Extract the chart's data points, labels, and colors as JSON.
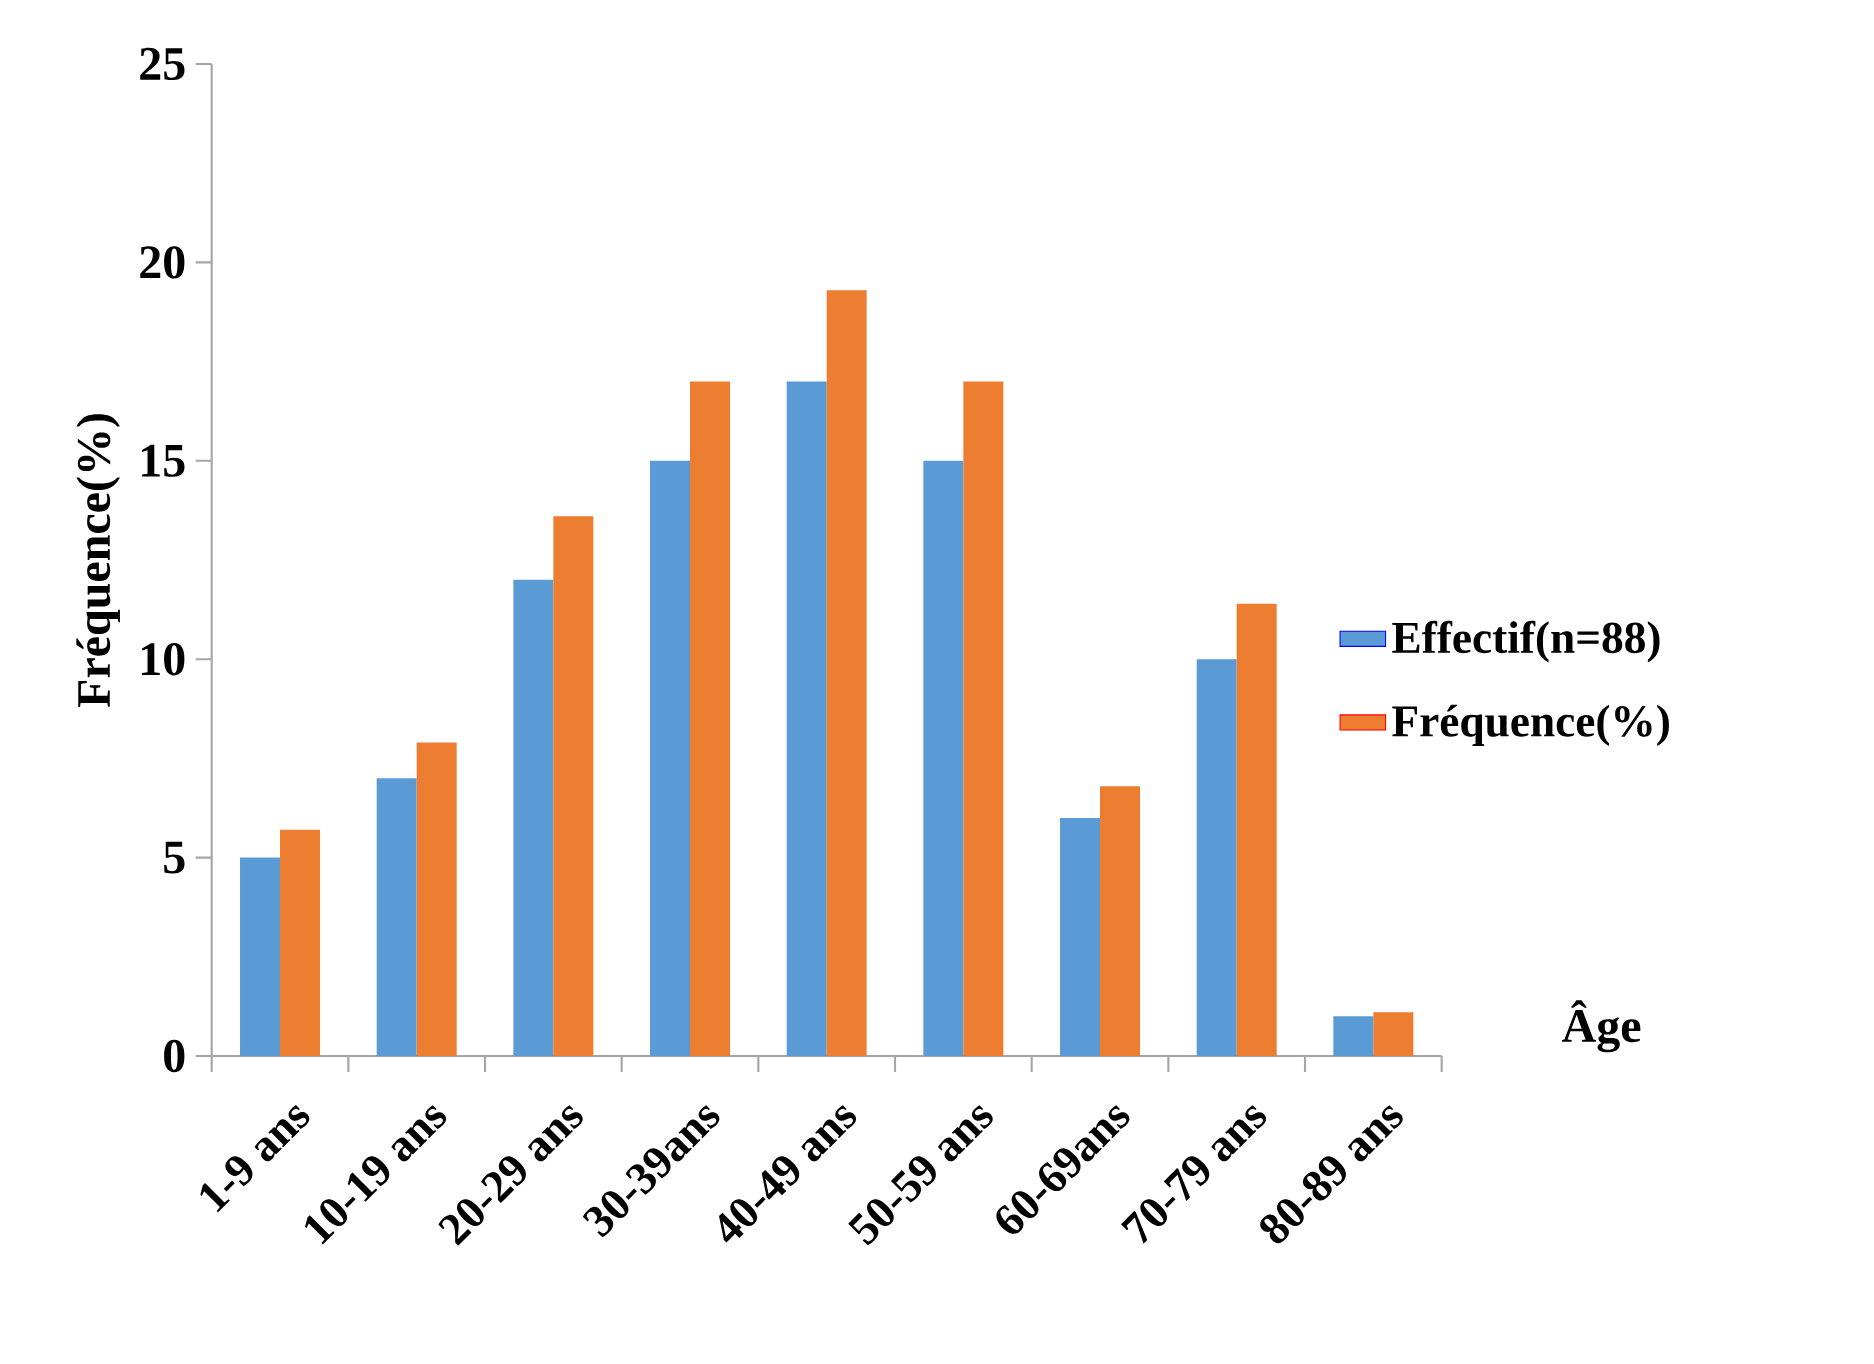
{
  "chart_data": {
    "type": "bar",
    "xlabel": "Âge",
    "ylabel": "Fréquence(%)",
    "categories": [
      "1-9 ans",
      "10-19 ans",
      "20-29 ans",
      "30-39ans",
      "40-49 ans",
      "50-59 ans",
      "60-69ans",
      "70-79 ans",
      "80-89 ans"
    ],
    "series": [
      {
        "name": "Effectif(n=88)",
        "color": "#5b9bd5",
        "values": [
          5,
          7,
          12,
          15,
          17,
          15,
          6,
          10,
          1
        ]
      },
      {
        "name": "Fréquence(%)",
        "color": "#ed7d31",
        "values": [
          5.7,
          7.9,
          13.6,
          17.0,
          19.3,
          17.0,
          6.8,
          11.4,
          1.1
        ]
      }
    ],
    "ylim": [
      0,
      25
    ],
    "yticks": [
      0,
      5,
      10,
      15,
      20,
      25
    ],
    "grid": false,
    "legend": "right"
  }
}
